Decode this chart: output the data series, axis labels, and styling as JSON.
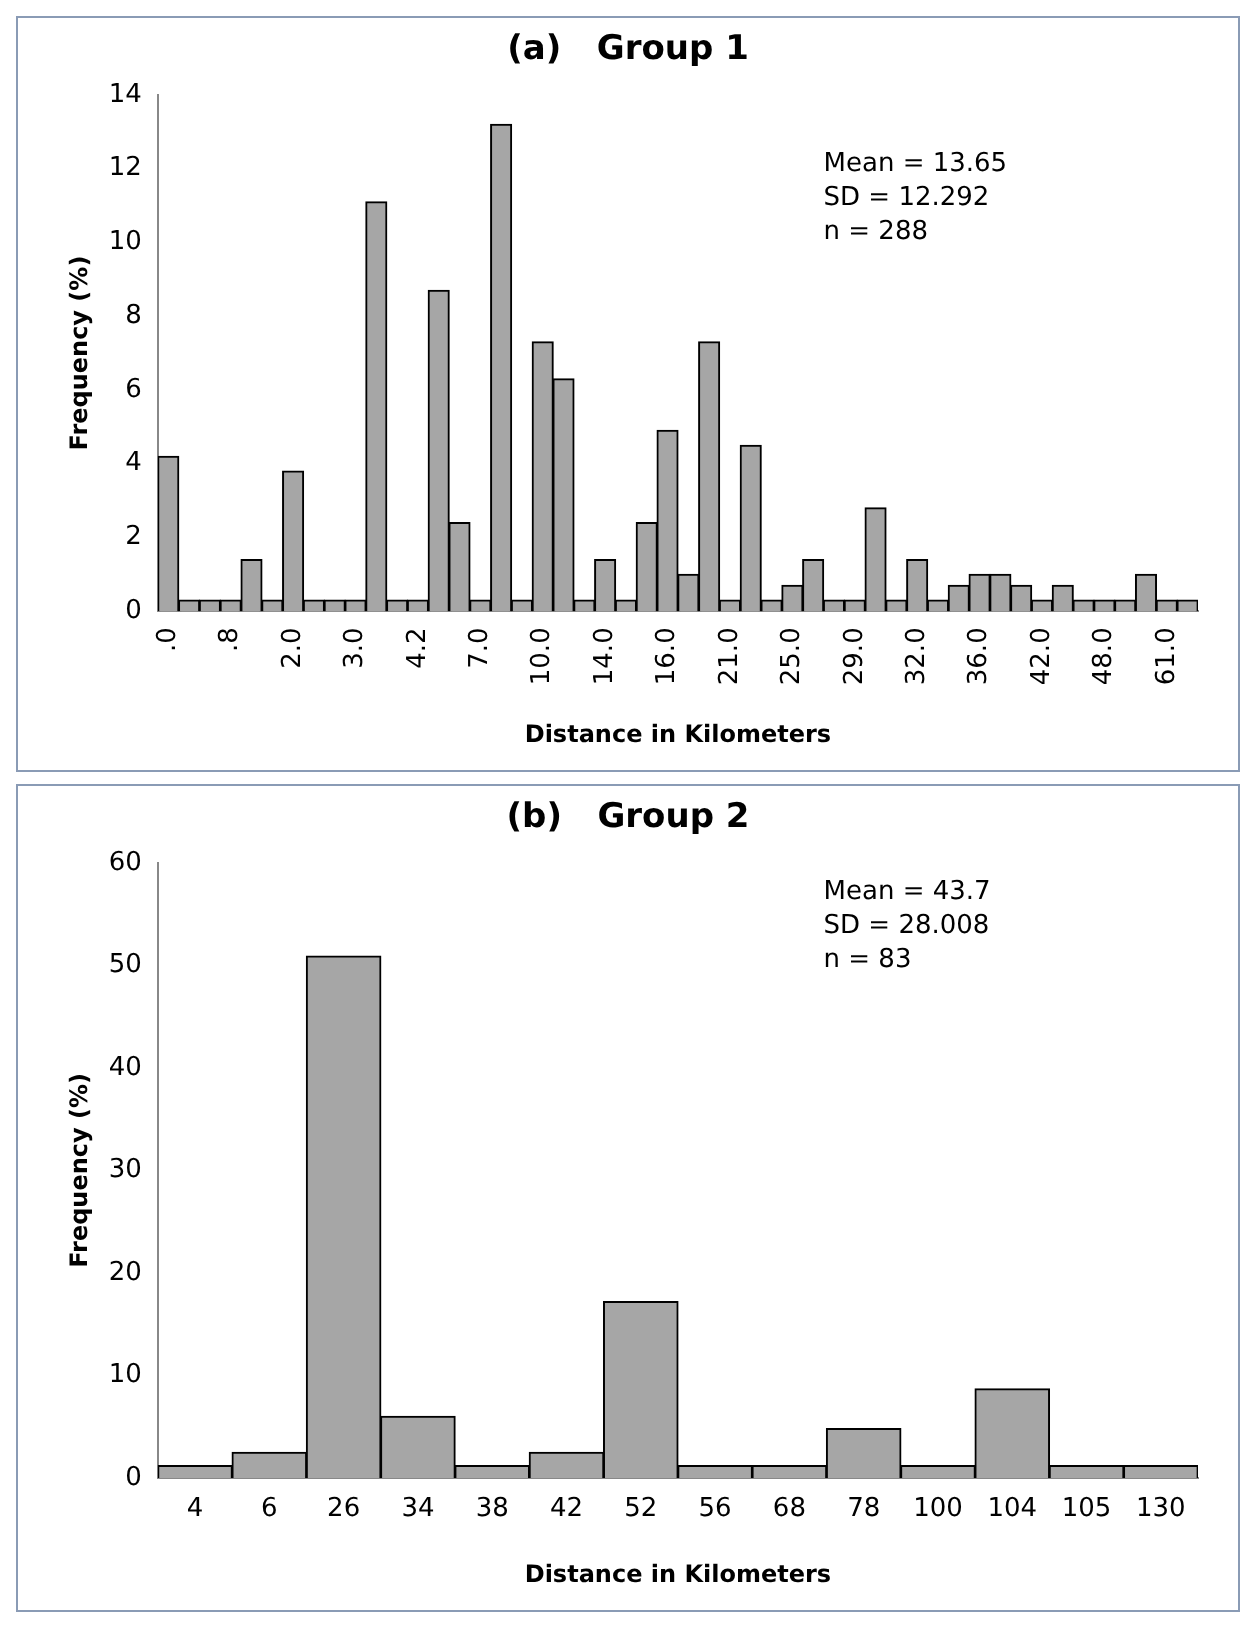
{
  "chart_data": [
    {
      "type": "bar",
      "title": "(a)   Group 1",
      "xlabel": "Distance in Kilometers",
      "ylabel": "Frequency (%)",
      "categories": [
        ".0",
        null,
        null,
        ".8",
        null,
        null,
        "2.0",
        null,
        null,
        "3.0",
        null,
        null,
        "4.2",
        null,
        null,
        "7.0",
        null,
        null,
        "10.0",
        null,
        null,
        "14.0",
        null,
        null,
        "16.0",
        null,
        null,
        "21.0",
        null,
        null,
        "25.0",
        null,
        null,
        "29.0",
        null,
        null,
        "32.0",
        null,
        null,
        "36.0",
        null,
        null,
        "42.0",
        null,
        null,
        "48.0",
        null,
        null,
        "61.0",
        null
      ],
      "values": [
        4.2,
        0.3,
        0.3,
        0.3,
        1.4,
        0.3,
        3.8,
        0.3,
        0.3,
        0.3,
        11.1,
        0.3,
        0.3,
        8.7,
        2.4,
        0.3,
        13.2,
        0.3,
        7.3,
        6.3,
        0.3,
        1.4,
        0.3,
        2.4,
        4.9,
        1.0,
        7.3,
        0.3,
        4.5,
        0.3,
        0.7,
        1.4,
        0.3,
        0.3,
        2.8,
        0.3,
        1.4,
        0.3,
        0.7,
        1.0,
        1.0,
        0.7,
        0.3,
        0.7,
        0.3,
        0.3,
        0.3,
        1.0,
        0.3,
        0.3
      ],
      "color": "#a6a6a6",
      "ylim": [
        0,
        14
      ],
      "yticks": [
        0,
        2,
        4,
        6,
        8,
        10,
        12,
        14
      ],
      "grid": false,
      "annotations": [
        "Mean = 13.65",
        "SD = 12.292",
        "n = 288"
      ]
    },
    {
      "type": "bar",
      "title": "(b)   Group 2",
      "xlabel": "Distance in Kilometers",
      "ylabel": "Frequency (%)",
      "categories": [
        "4",
        "6",
        "26",
        "34",
        "38",
        "42",
        "52",
        "56",
        "68",
        "78",
        "100",
        "104",
        "105",
        "130"
      ],
      "values": [
        1.2,
        2.5,
        50.9,
        6.0,
        1.2,
        2.5,
        17.2,
        1.2,
        1.2,
        4.8,
        1.2,
        8.7,
        1.2,
        1.2
      ],
      "color": "#a6a6a6",
      "ylim": [
        0,
        60
      ],
      "yticks": [
        0,
        10,
        20,
        30,
        40,
        50,
        60
      ],
      "grid": false,
      "annotations": [
        "Mean = 43.7",
        "SD = 28.008",
        "n = 83"
      ]
    }
  ]
}
